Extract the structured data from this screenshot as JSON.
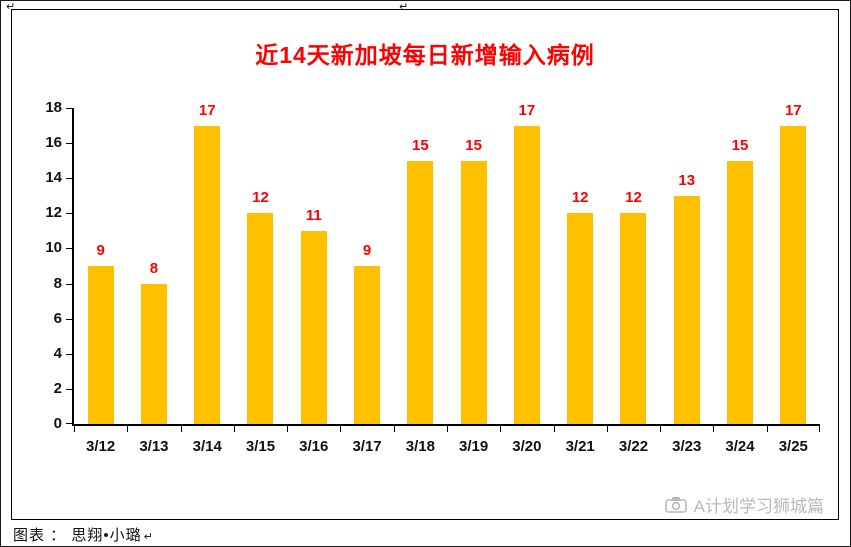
{
  "page": {
    "return_mark": "↵"
  },
  "chart_data": {
    "type": "bar",
    "title": "近14天新加坡每日新增输入病例",
    "categories": [
      "3/12",
      "3/13",
      "3/14",
      "3/15",
      "3/16",
      "3/17",
      "3/18",
      "3/19",
      "3/20",
      "3/21",
      "3/22",
      "3/23",
      "3/24",
      "3/25"
    ],
    "values": [
      9,
      8,
      17,
      12,
      11,
      9,
      15,
      15,
      17,
      12,
      12,
      13,
      15,
      17
    ],
    "xlabel": "",
    "ylabel": "",
    "ylim": [
      0,
      18
    ],
    "ytick_step": 2,
    "grid": false,
    "legend_position": "none",
    "bar_color": "#FFC000",
    "value_label_color": "#FF0000",
    "title_color": "#FF0000"
  },
  "caption": {
    "text": "图表 ： 思翔•小璐"
  },
  "watermark": {
    "icon": "camera-icon",
    "text": "A计划学习狮城篇",
    "color": "#b9b9b9"
  }
}
